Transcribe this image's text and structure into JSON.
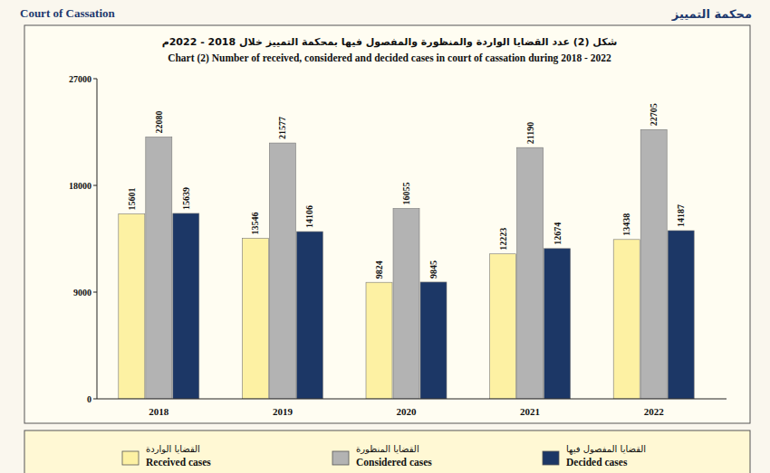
{
  "chart_data": {
    "type": "bar",
    "header_left": "Court of Cassation",
    "header_right": "محكمة التمييز",
    "title": "شكل (2) عدد القضايا الواردة والمنظورة والمفصول فيها بمحكمة التمييز خلال 2018 - 2022م",
    "subtitle": "Chart (2) Number of received, considered and decided cases in court of cassation during 2018 - 2022",
    "categories": [
      "2018",
      "2019",
      "2020",
      "2021",
      "2022"
    ],
    "series": [
      {
        "name": "Received cases",
        "name_ar": "القضايا الواردة",
        "color": "#fdf1a3",
        "values": [
          15601,
          13546,
          9824,
          12223,
          13438
        ]
      },
      {
        "name": "Considered cases",
        "name_ar": "القضايا المنظورة",
        "color": "#b3b3b3",
        "values": [
          22080,
          21577,
          16055,
          21190,
          22705
        ]
      },
      {
        "name": "Decided cases",
        "name_ar": "القضايا المفصول فيها",
        "color": "#1c3766",
        "values": [
          15639,
          14106,
          9845,
          12674,
          14187
        ]
      }
    ],
    "ylim": [
      0,
      27000
    ],
    "yticks": [
      0,
      9000,
      18000,
      27000
    ],
    "grid": false,
    "data_labels": true,
    "legend": "bottom"
  }
}
